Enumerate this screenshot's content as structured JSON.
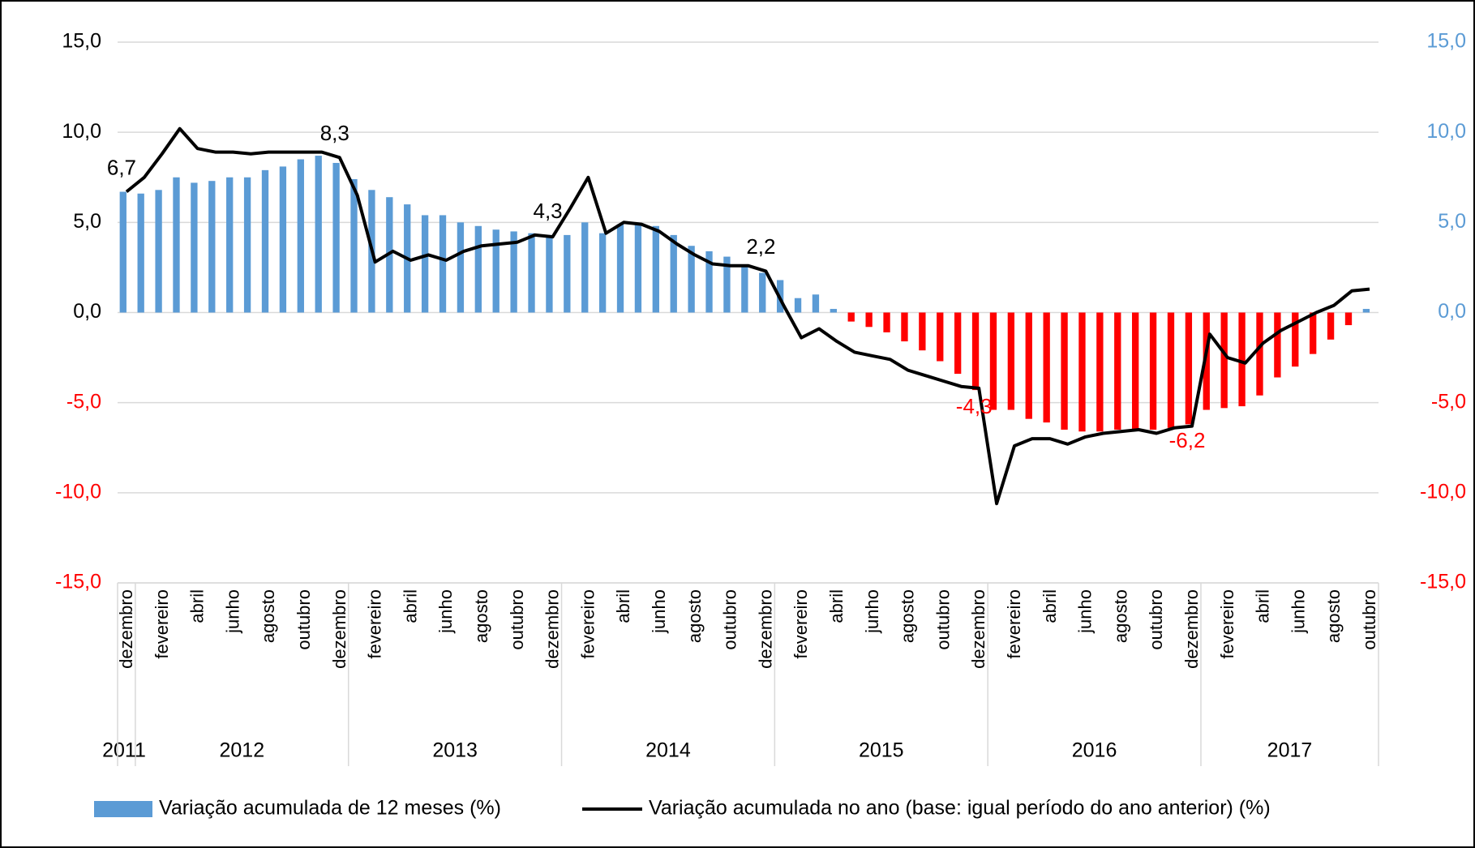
{
  "chart_data": {
    "type": "bar_line",
    "categories": [
      "dezembro",
      null,
      "fevereiro",
      null,
      "abril",
      null,
      "junho",
      null,
      "agosto",
      null,
      "outubro",
      null,
      "dezembro",
      null,
      "fevereiro",
      null,
      "abril",
      null,
      "junho",
      null,
      "agosto",
      null,
      "outubro",
      null,
      "dezembro",
      null,
      "fevereiro",
      null,
      "abril",
      null,
      "junho",
      null,
      "agosto",
      null,
      "outubro",
      null,
      "dezembro",
      null,
      "fevereiro",
      null,
      "abril",
      null,
      "junho",
      null,
      "agosto",
      null,
      "outubro",
      null,
      "dezembro",
      null,
      "fevereiro",
      null,
      "abril",
      null,
      "junho",
      null,
      "agosto",
      null,
      "outubro",
      null,
      "dezembro",
      null,
      "fevereiro",
      null,
      "abril",
      null,
      "junho",
      null,
      "agosto",
      null,
      "outubro"
    ],
    "years": [
      {
        "name": "2011",
        "start": 0,
        "end": 0
      },
      {
        "name": "2012",
        "start": 1,
        "end": 12
      },
      {
        "name": "2013",
        "start": 13,
        "end": 24
      },
      {
        "name": "2014",
        "start": 25,
        "end": 36
      },
      {
        "name": "2015",
        "start": 37,
        "end": 48
      },
      {
        "name": "2016",
        "start": 49,
        "end": 60
      },
      {
        "name": "2017",
        "start": 61,
        "end": 70
      }
    ],
    "series": [
      {
        "name": "Variação acumulada de 12 meses (%)",
        "type": "bar",
        "color": "#5b9bd5",
        "negative_color": "#ff0000",
        "values": [
          6.7,
          6.6,
          6.8,
          7.5,
          7.2,
          7.3,
          7.5,
          7.5,
          7.9,
          8.1,
          8.5,
          8.7,
          8.3,
          7.4,
          6.8,
          6.4,
          6.0,
          5.4,
          5.4,
          5.0,
          4.8,
          4.6,
          4.5,
          4.4,
          4.3,
          4.3,
          5.0,
          4.4,
          4.9,
          4.9,
          4.8,
          4.3,
          3.7,
          3.4,
          3.1,
          2.6,
          2.2,
          1.8,
          0.8,
          1.0,
          0.2,
          -0.5,
          -0.8,
          -1.1,
          -1.6,
          -2.1,
          -2.7,
          -3.4,
          -4.3,
          -5.4,
          -5.4,
          -5.9,
          -6.1,
          -6.5,
          -6.6,
          -6.6,
          -6.5,
          -6.5,
          -6.5,
          -6.4,
          -6.2,
          -5.4,
          -5.3,
          -5.2,
          -4.6,
          -3.6,
          -3.0,
          -2.3,
          -1.5,
          -0.7,
          0.2
        ],
        "value_labels": [
          "6,7",
          null,
          null,
          null,
          null,
          null,
          null,
          null,
          null,
          null,
          null,
          null,
          "8,3",
          null,
          null,
          null,
          null,
          null,
          null,
          null,
          null,
          null,
          null,
          null,
          "4,3",
          null,
          null,
          null,
          null,
          null,
          null,
          null,
          null,
          null,
          null,
          null,
          "2,2",
          null,
          null,
          null,
          null,
          null,
          null,
          null,
          null,
          null,
          null,
          null,
          "-4,3",
          null,
          null,
          null,
          null,
          null,
          null,
          null,
          null,
          null,
          null,
          null,
          "-6,2",
          null,
          null,
          null,
          null,
          null,
          null,
          null,
          null,
          null,
          null
        ]
      },
      {
        "name": "Variação acumulada no ano (base: igual período do ano anterior) (%)",
        "type": "line",
        "color": "#000000",
        "values": [
          6.7,
          7.5,
          8.8,
          10.2,
          9.1,
          8.9,
          8.9,
          8.8,
          8.9,
          8.9,
          8.9,
          8.9,
          8.6,
          6.5,
          2.8,
          3.4,
          2.9,
          3.2,
          2.9,
          3.4,
          3.7,
          3.8,
          3.9,
          4.3,
          4.2,
          5.8,
          7.5,
          4.4,
          5.0,
          4.9,
          4.5,
          3.8,
          3.2,
          2.7,
          2.6,
          2.6,
          2.3,
          0.4,
          -1.4,
          -0.9,
          -1.6,
          -2.2,
          -2.4,
          -2.6,
          -3.2,
          -3.5,
          -3.8,
          -4.1,
          -4.2,
          -10.6,
          -7.4,
          -7.0,
          -7.0,
          -7.3,
          -6.9,
          -6.7,
          -6.6,
          -6.5,
          -6.7,
          -6.4,
          -6.3,
          -1.2,
          -2.5,
          -2.8,
          -1.7,
          -1.0,
          -0.5,
          0.0,
          0.4,
          1.2,
          1.3
        ]
      }
    ],
    "ylim": [
      -15,
      15
    ],
    "yticks": [
      {
        "value": -15,
        "label": "-15,0"
      },
      {
        "value": -10,
        "label": "-10,0"
      },
      {
        "value": -5,
        "label": "-5,0"
      },
      {
        "value": 0,
        "label": "0,0"
      },
      {
        "value": 5,
        "label": "5,0"
      },
      {
        "value": 10,
        "label": "10,0"
      },
      {
        "value": 15,
        "label": "15,0"
      }
    ],
    "y2lim": [
      -15,
      15
    ],
    "y2ticks": [
      {
        "value": -15,
        "label": "-15,0"
      },
      {
        "value": -10,
        "label": "-10,0"
      },
      {
        "value": -5,
        "label": "-5,0"
      },
      {
        "value": 0,
        "label": "0,0"
      },
      {
        "value": 5,
        "label": "5,0"
      },
      {
        "value": 10,
        "label": "10,0"
      },
      {
        "value": 15,
        "label": "15,0"
      }
    ],
    "positive_tick_color_y2": "#5b9bd5",
    "negative_tick_color": "#ff0000",
    "grid": true,
    "legend": "bottom"
  }
}
